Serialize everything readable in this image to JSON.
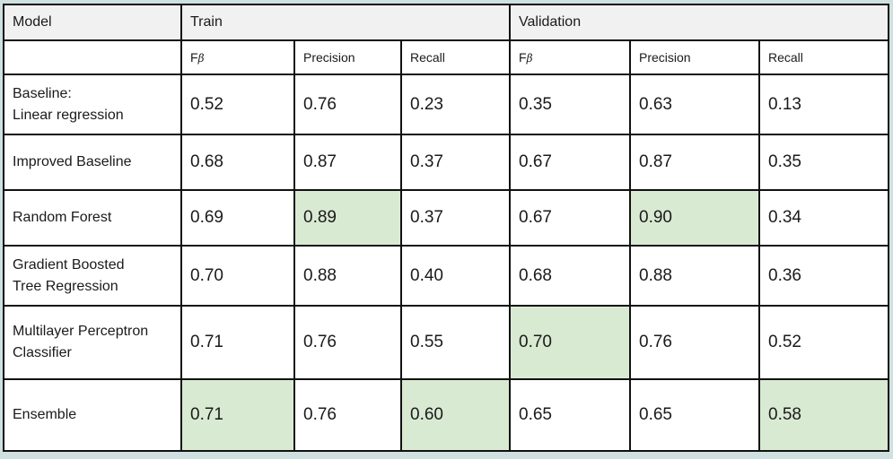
{
  "table": {
    "header_groups": {
      "model": "Model",
      "train": "Train",
      "validation": "Validation"
    },
    "subheaders": {
      "train": {
        "f": "F",
        "beta": "β",
        "precision": "Precision",
        "recall": "Recall"
      },
      "validation": {
        "f": "F",
        "beta": "β",
        "precision": "Precision",
        "recall": "Recall"
      }
    },
    "rows": [
      {
        "line1": "Baseline:",
        "line2": "Linear regression",
        "train": {
          "fbeta": "0.52",
          "precision": "0.76",
          "recall": "0.23"
        },
        "validation": {
          "fbeta": "0.35",
          "precision": "0.63",
          "recall": "0.13"
        }
      },
      {
        "line1": "Improved Baseline",
        "line2": "",
        "train": {
          "fbeta": "0.68",
          "precision": "0.87",
          "recall": "0.37"
        },
        "validation": {
          "fbeta": "0.67",
          "precision": "0.87",
          "recall": "0.35"
        }
      },
      {
        "line1": "Random Forest",
        "line2": "",
        "train": {
          "fbeta": "0.69",
          "precision": "0.89",
          "recall": "0.37"
        },
        "validation": {
          "fbeta": "0.67",
          "precision": "0.90",
          "recall": "0.34"
        }
      },
      {
        "line1": "Gradient Boosted",
        "line2": "Tree Regression",
        "train": {
          "fbeta": "0.70",
          "precision": "0.88",
          "recall": "0.40"
        },
        "validation": {
          "fbeta": "0.68",
          "precision": "0.88",
          "recall": "0.36"
        }
      },
      {
        "line1": "Multilayer Perceptron",
        "line2": "Classifier",
        "train": {
          "fbeta": "0.71",
          "precision": "0.76",
          "recall": "0.55"
        },
        "validation": {
          "fbeta": "0.70",
          "precision": "0.76",
          "recall": "0.52"
        }
      },
      {
        "line1": "Ensemble",
        "line2": "",
        "train": {
          "fbeta": "0.71",
          "precision": "0.76",
          "recall": "0.60"
        },
        "validation": {
          "fbeta": "0.65",
          "precision": "0.65",
          "recall": "0.58"
        }
      }
    ],
    "colors": {
      "highlight": "#d9ead3",
      "header_bg": "#f1f1f1",
      "border": "#111111"
    }
  }
}
